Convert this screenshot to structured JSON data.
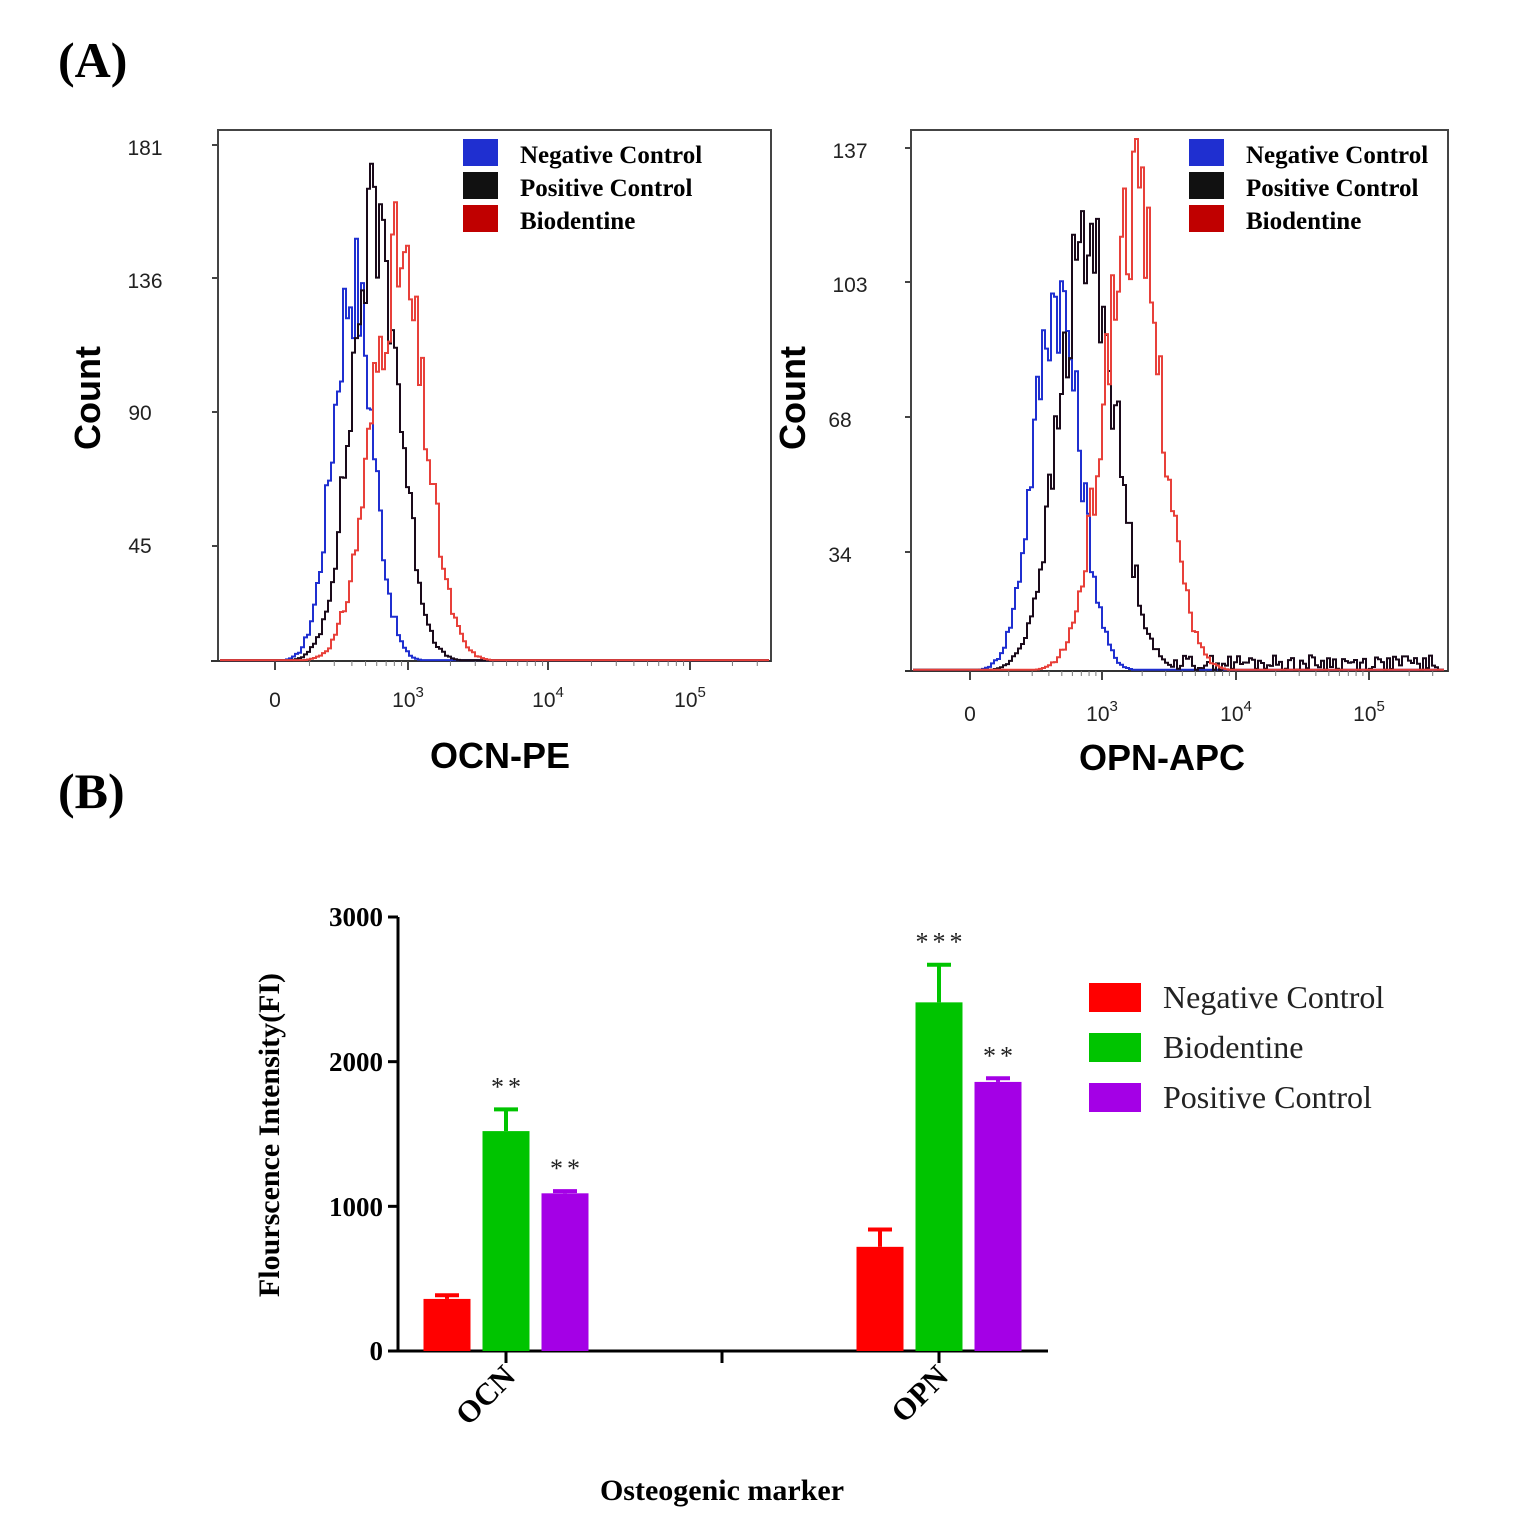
{
  "labels": {
    "panel_a": "(A)",
    "panel_b": "(B)"
  },
  "chart_data": [
    {
      "type": "histogram",
      "id": "ocn",
      "xlabel": "OCN-PE",
      "ylabel": "Count",
      "y_ticks": [
        "181",
        "136",
        "90",
        "45"
      ],
      "x_ticks": [
        {
          "base": "0",
          "exp": ""
        },
        {
          "base": "10",
          "exp": "3"
        },
        {
          "base": "10",
          "exp": "4"
        },
        {
          "base": "10",
          "exp": "5"
        }
      ],
      "legend": [
        "Negative Control",
        "Positive Control",
        "Biodentine"
      ],
      "colors": [
        "#1f2fd0",
        "#1a0a1a",
        "#e8403a"
      ],
      "ymax": 181,
      "series": [
        {
          "name": "Negative Control",
          "center": 2.6,
          "width": 0.14,
          "peak": 134,
          "tail": 0
        },
        {
          "name": "Positive Control",
          "center": 2.76,
          "width": 0.17,
          "peak": 155,
          "tail": 0
        },
        {
          "name": "Biodentine",
          "center": 2.92,
          "width": 0.19,
          "peak": 140,
          "tail": 0
        }
      ]
    },
    {
      "type": "histogram",
      "id": "opn",
      "xlabel": "OPN-APC",
      "ylabel": "Count",
      "y_ticks": [
        "137",
        "103",
        "68",
        "34"
      ],
      "x_ticks": [
        {
          "base": "0",
          "exp": ""
        },
        {
          "base": "10",
          "exp": "3"
        },
        {
          "base": "10",
          "exp": "4"
        },
        {
          "base": "10",
          "exp": "5"
        }
      ],
      "legend": [
        "Negative Control",
        "Positive Control",
        "Biodentine"
      ],
      "colors": [
        "#1f2fd0",
        "#1a0a1a",
        "#e8403a"
      ],
      "ymax": 137,
      "series": [
        {
          "name": "Negative Control",
          "center": 2.65,
          "width": 0.17,
          "peak": 99,
          "tail": 0
        },
        {
          "name": "Positive Control",
          "center": 2.88,
          "width": 0.21,
          "peak": 112,
          "tail": 2
        },
        {
          "name": "Biodentine",
          "center": 3.22,
          "width": 0.21,
          "peak": 122,
          "tail": 0
        }
      ]
    },
    {
      "type": "bar",
      "id": "fi",
      "categories": [
        "OCN",
        "OPN"
      ],
      "series": [
        {
          "name": "Negative Control",
          "color": "#ff0000",
          "values": [
            360,
            720
          ],
          "errors": [
            25,
            120
          ],
          "sig": [
            "",
            ""
          ]
        },
        {
          "name": "Biodentine",
          "color": "#00c400",
          "values": [
            1520,
            2410
          ],
          "errors": [
            150,
            260
          ],
          "sig": [
            "**",
            "***"
          ]
        },
        {
          "name": "Positive Control",
          "color": "#a400e6",
          "values": [
            1090,
            1860
          ],
          "errors": [
            15,
            25
          ],
          "sig": [
            "**",
            "**"
          ]
        }
      ],
      "ylim": [
        0,
        3000
      ],
      "y_ticks": [
        "0",
        "1000",
        "2000",
        "3000"
      ],
      "xlabel": "Osteogenic marker",
      "ylabel": "Flourscence Intensity(FI)"
    }
  ]
}
